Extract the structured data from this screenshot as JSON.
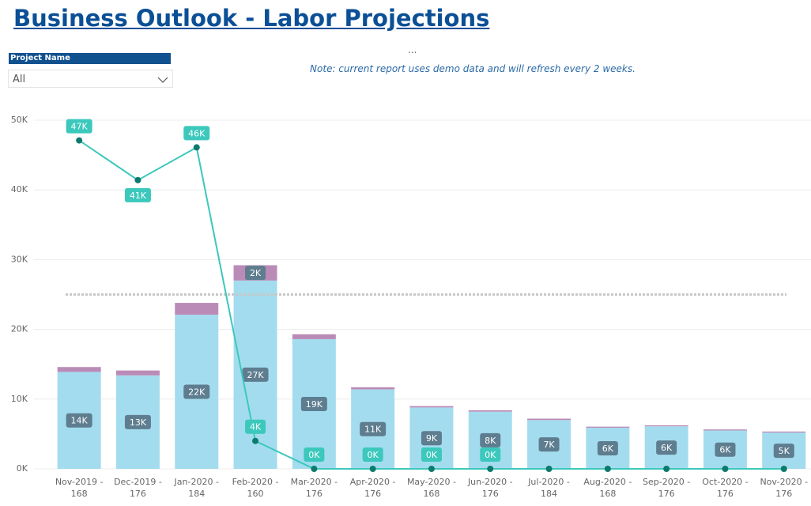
{
  "header": {
    "title": "Business Outlook - Labor Projections",
    "more": "...",
    "note": "Note: current report uses demo data and will refresh every 2 weeks."
  },
  "slicer": {
    "label": "Project Name",
    "value": "All"
  },
  "chart_data": {
    "type": "bar",
    "categories": [
      "Nov-2019 - 168",
      "Dec-2019 - 176",
      "Jan-2020 - 184",
      "Feb-2020 - 160",
      "Mar-2020 - 176",
      "Apr-2020 - 176",
      "May-2020 - 168",
      "Jun-2020 - 176",
      "Jul-2020 - 184",
      "Aug-2020 - 168",
      "Sep-2020 - 176",
      "Oct-2020 - 176",
      "Nov-2020 - 176"
    ],
    "series": [
      {
        "type": "bar",
        "color": "#a3dcee",
        "values": [
          13900,
          13400,
          22100,
          27000,
          18600,
          11400,
          8800,
          8200,
          7000,
          5900,
          6100,
          5500,
          5200
        ],
        "value_labels": [
          "14K",
          "13K",
          "22K",
          "27K",
          "19K",
          "11K",
          "9K",
          "8K",
          "7K",
          "6K",
          "6K",
          "6K",
          "5K"
        ]
      },
      {
        "type": "bar",
        "color": "#bb8bb7",
        "values": [
          700,
          700,
          1700,
          2200,
          700,
          300,
          200,
          200,
          200,
          150,
          150,
          150,
          150
        ],
        "value_labels": [
          null,
          null,
          null,
          "2K",
          null,
          null,
          null,
          null,
          null,
          null,
          null,
          null,
          null
        ]
      },
      {
        "type": "line",
        "color": "#3cc8bc",
        "values": [
          47100,
          41400,
          46100,
          4000,
          0,
          0,
          0,
          0,
          0,
          0,
          0,
          0,
          0
        ],
        "value_labels": [
          "47K",
          "41K",
          "46K",
          "4K",
          "0K",
          "0K",
          "0K",
          "0K",
          null,
          null,
          null,
          null,
          null
        ]
      }
    ],
    "reference_line": 25000,
    "ylim": [
      0,
      50000
    ],
    "yticks": [
      {
        "value": 0,
        "label": "0K"
      },
      {
        "value": 10000,
        "label": "10K"
      },
      {
        "value": 20000,
        "label": "20K"
      },
      {
        "value": 30000,
        "label": "30K"
      },
      {
        "value": 40000,
        "label": "40K"
      },
      {
        "value": 50000,
        "label": "50K"
      }
    ],
    "grid": true
  }
}
